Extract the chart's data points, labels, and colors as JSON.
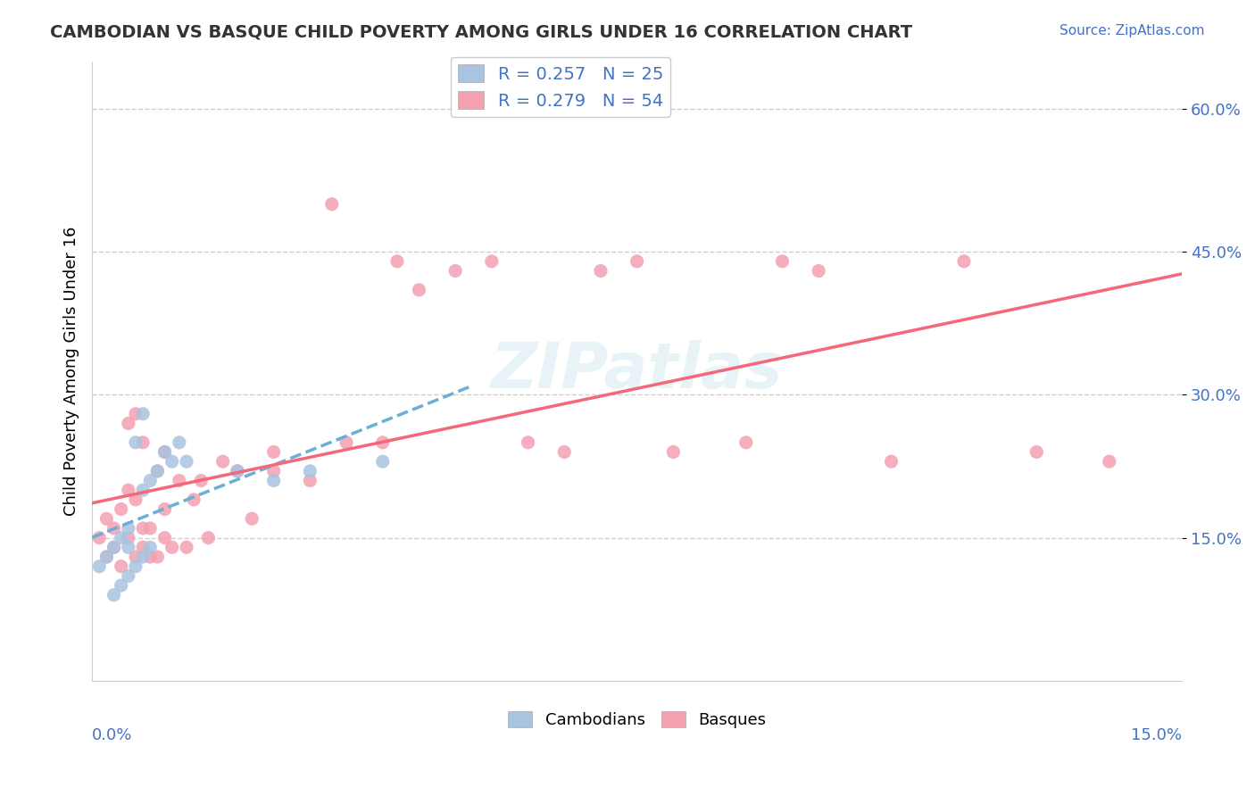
{
  "title": "CAMBODIAN VS BASQUE CHILD POVERTY AMONG GIRLS UNDER 16 CORRELATION CHART",
  "source": "Source: ZipAtlas.com",
  "ylabel": "Child Poverty Among Girls Under 16",
  "ytick_labels": [
    "15.0%",
    "30.0%",
    "45.0%",
    "60.0%"
  ],
  "ytick_values": [
    0.15,
    0.3,
    0.45,
    0.6
  ],
  "xmin": 0.0,
  "xmax": 0.15,
  "ymin": 0.0,
  "ymax": 0.65,
  "legend_label1": "R = 0.257   N = 25",
  "legend_label2": "R = 0.279   N = 54",
  "legend_bottom_label1": "Cambodians",
  "legend_bottom_label2": "Basques",
  "cambodian_scatter_x": [
    0.001,
    0.002,
    0.003,
    0.003,
    0.004,
    0.004,
    0.005,
    0.005,
    0.005,
    0.006,
    0.006,
    0.007,
    0.007,
    0.007,
    0.008,
    0.008,
    0.009,
    0.01,
    0.011,
    0.012,
    0.013,
    0.02,
    0.025,
    0.03,
    0.04
  ],
  "cambodian_scatter_y": [
    0.12,
    0.13,
    0.09,
    0.14,
    0.1,
    0.15,
    0.11,
    0.14,
    0.16,
    0.12,
    0.25,
    0.13,
    0.28,
    0.2,
    0.14,
    0.21,
    0.22,
    0.24,
    0.23,
    0.25,
    0.23,
    0.22,
    0.21,
    0.22,
    0.23
  ],
  "basque_scatter_x": [
    0.001,
    0.002,
    0.002,
    0.003,
    0.003,
    0.004,
    0.004,
    0.005,
    0.005,
    0.005,
    0.006,
    0.006,
    0.006,
    0.007,
    0.007,
    0.007,
    0.008,
    0.008,
    0.009,
    0.009,
    0.01,
    0.01,
    0.01,
    0.011,
    0.012,
    0.013,
    0.014,
    0.015,
    0.016,
    0.018,
    0.02,
    0.022,
    0.025,
    0.025,
    0.03,
    0.033,
    0.035,
    0.04,
    0.042,
    0.045,
    0.05,
    0.055,
    0.06,
    0.065,
    0.07,
    0.075,
    0.08,
    0.09,
    0.095,
    0.1,
    0.11,
    0.12,
    0.13,
    0.14
  ],
  "basque_scatter_y": [
    0.15,
    0.13,
    0.17,
    0.14,
    0.16,
    0.12,
    0.18,
    0.15,
    0.2,
    0.27,
    0.13,
    0.19,
    0.28,
    0.14,
    0.16,
    0.25,
    0.13,
    0.16,
    0.13,
    0.22,
    0.15,
    0.18,
    0.24,
    0.14,
    0.21,
    0.14,
    0.19,
    0.21,
    0.15,
    0.23,
    0.22,
    0.17,
    0.24,
    0.22,
    0.21,
    0.5,
    0.25,
    0.25,
    0.44,
    0.41,
    0.43,
    0.44,
    0.25,
    0.24,
    0.43,
    0.44,
    0.24,
    0.25,
    0.44,
    0.43,
    0.23,
    0.44,
    0.24,
    0.23
  ],
  "cambodian_color": "#a8c4e0",
  "basque_color": "#f4a0b0",
  "cambodian_line_color": "#6baed6",
  "basque_line_color": "#f4687a",
  "watermark_text": "ZIPatlas",
  "background_color": "#ffffff",
  "grid_color": "#d0d0d0"
}
